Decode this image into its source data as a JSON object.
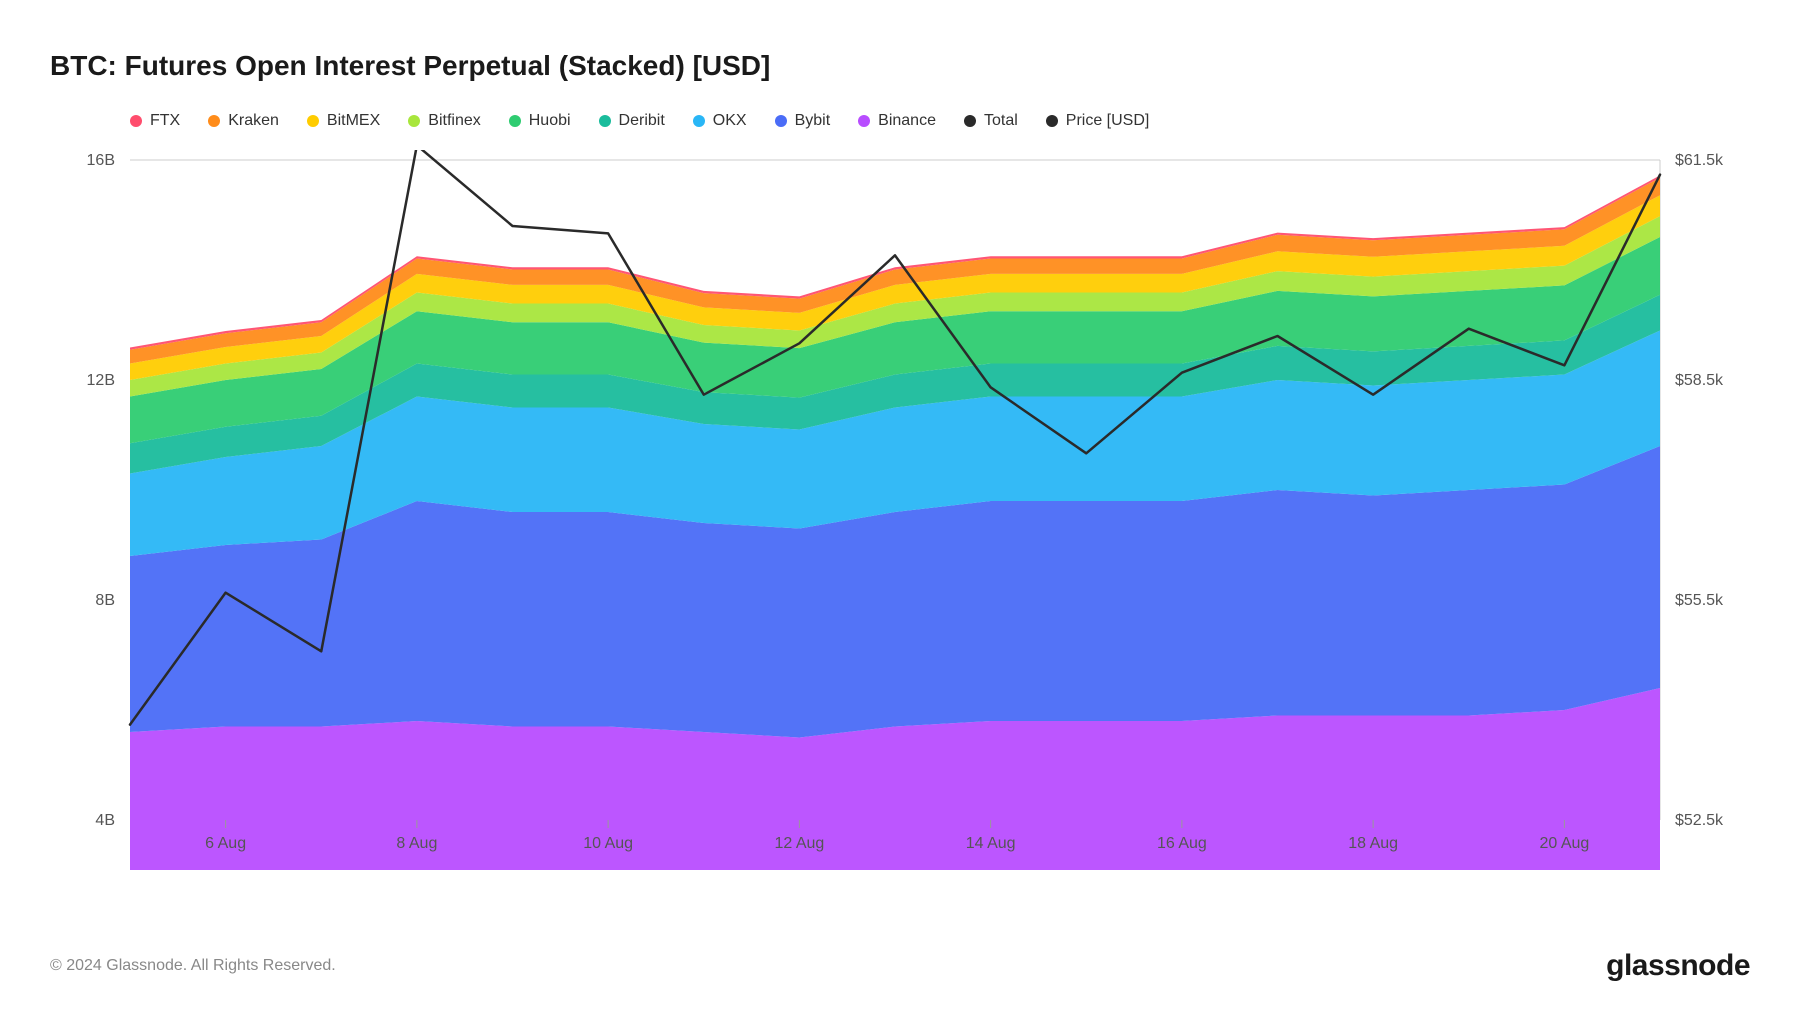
{
  "title": "BTC: Futures Open Interest Perpetual (Stacked) [USD]",
  "copyright": "© 2024 Glassnode. All Rights Reserved.",
  "brand": "glassnode",
  "legend": [
    {
      "label": "FTX",
      "color": "#ff4d6d"
    },
    {
      "label": "Kraken",
      "color": "#ff8c1a"
    },
    {
      "label": "BitMEX",
      "color": "#ffcc00"
    },
    {
      "label": "Bitfinex",
      "color": "#a8e63c"
    },
    {
      "label": "Huobi",
      "color": "#2ecc71"
    },
    {
      "label": "Deribit",
      "color": "#1abc9c"
    },
    {
      "label": "OKX",
      "color": "#29b6f6"
    },
    {
      "label": "Bybit",
      "color": "#4a6cf7"
    },
    {
      "label": "Binance",
      "color": "#b84dff"
    },
    {
      "label": "Total",
      "color": "#2a2a2a"
    },
    {
      "label": "Price [USD]",
      "color": "#2a2a2a"
    }
  ],
  "chart": {
    "type": "stacked-area-with-line",
    "background_color": "#ffffff",
    "border_color": "#cccccc",
    "x_labels": [
      "6 Aug",
      "8 Aug",
      "10 Aug",
      "12 Aug",
      "14 Aug",
      "16 Aug",
      "18 Aug",
      "20 Aug"
    ],
    "x_label_indices": [
      1,
      3,
      5,
      7,
      9,
      11,
      13,
      15
    ],
    "n_points": 17,
    "y_left": {
      "min": 4,
      "max": 16,
      "ticks": [
        4,
        8,
        12,
        16
      ],
      "tick_labels": [
        "4B",
        "8B",
        "12B",
        "16B"
      ]
    },
    "y_right": {
      "min": 52.5,
      "max": 61.5,
      "ticks": [
        52.5,
        55.5,
        58.5,
        61.5
      ],
      "tick_labels": [
        "$52.5k",
        "$55.5k",
        "$58.5k",
        "$61.5k"
      ]
    },
    "series_stack": [
      {
        "name": "Binance",
        "color": "#b84dff",
        "values": [
          5.6,
          5.7,
          5.7,
          5.8,
          5.7,
          5.7,
          5.6,
          5.5,
          5.7,
          5.8,
          5.8,
          5.8,
          5.9,
          5.9,
          5.9,
          6.0,
          6.4
        ]
      },
      {
        "name": "Bybit",
        "color": "#4a6cf7",
        "values": [
          3.2,
          3.3,
          3.4,
          4.0,
          3.9,
          3.9,
          3.8,
          3.8,
          3.9,
          4.0,
          4.0,
          4.0,
          4.1,
          4.0,
          4.1,
          4.1,
          4.4
        ]
      },
      {
        "name": "OKX",
        "color": "#29b6f6",
        "values": [
          1.5,
          1.6,
          1.7,
          1.9,
          1.9,
          1.9,
          1.8,
          1.8,
          1.9,
          1.9,
          1.9,
          1.9,
          2.0,
          2.0,
          2.0,
          2.0,
          2.1
        ]
      },
      {
        "name": "Deribit",
        "color": "#1abc9c",
        "values": [
          0.55,
          0.55,
          0.55,
          0.6,
          0.6,
          0.6,
          0.58,
          0.58,
          0.6,
          0.6,
          0.6,
          0.6,
          0.62,
          0.62,
          0.62,
          0.62,
          0.65
        ]
      },
      {
        "name": "Huobi",
        "color": "#2ecc71",
        "values": [
          0.85,
          0.85,
          0.85,
          0.95,
          0.95,
          0.95,
          0.9,
          0.9,
          0.95,
          0.95,
          0.95,
          0.95,
          1.0,
          1.0,
          1.0,
          1.0,
          1.05
        ]
      },
      {
        "name": "Bitfinex",
        "color": "#a8e63c",
        "values": [
          0.3,
          0.3,
          0.3,
          0.34,
          0.34,
          0.34,
          0.32,
          0.32,
          0.34,
          0.34,
          0.34,
          0.34,
          0.36,
          0.36,
          0.36,
          0.36,
          0.38
        ]
      },
      {
        "name": "BitMEX",
        "color": "#ffcc00",
        "values": [
          0.3,
          0.3,
          0.3,
          0.34,
          0.34,
          0.34,
          0.32,
          0.32,
          0.34,
          0.34,
          0.34,
          0.34,
          0.36,
          0.36,
          0.36,
          0.36,
          0.38
        ]
      },
      {
        "name": "Kraken",
        "color": "#ff8c1a",
        "values": [
          0.25,
          0.25,
          0.25,
          0.28,
          0.28,
          0.28,
          0.26,
          0.26,
          0.28,
          0.28,
          0.28,
          0.28,
          0.3,
          0.3,
          0.3,
          0.3,
          0.32
        ]
      },
      {
        "name": "FTX",
        "color": "#ff4d6d",
        "values": [
          0.04,
          0.04,
          0.04,
          0.04,
          0.04,
          0.04,
          0.04,
          0.04,
          0.04,
          0.04,
          0.04,
          0.04,
          0.04,
          0.04,
          0.04,
          0.04,
          0.04
        ]
      }
    ],
    "price_line": {
      "color": "#2a2a2a",
      "width": 2.5,
      "values": [
        53.8,
        55.6,
        54.8,
        61.7,
        60.6,
        60.5,
        58.3,
        59.0,
        60.2,
        58.4,
        57.5,
        58.6,
        59.1,
        58.3,
        59.2,
        58.7,
        61.3
      ]
    }
  }
}
